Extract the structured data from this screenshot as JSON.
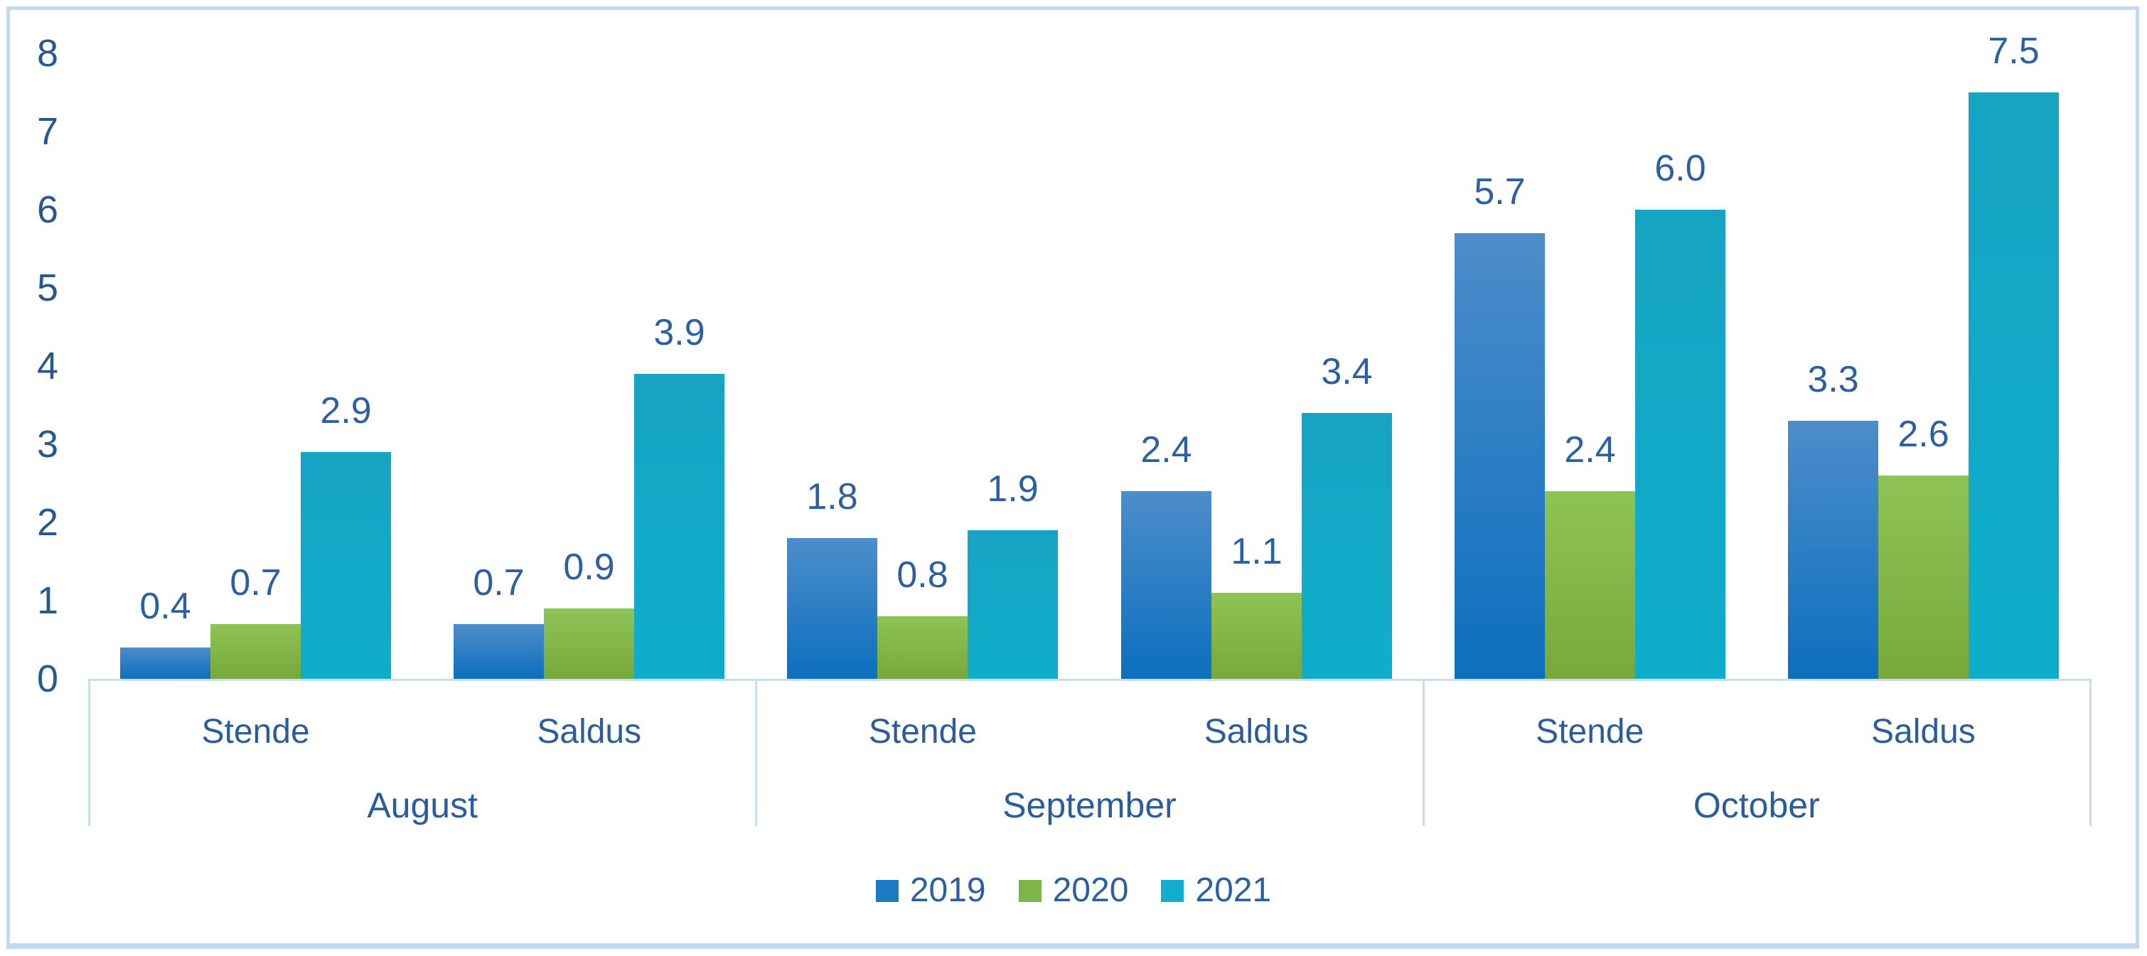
{
  "chart_data": {
    "type": "bar",
    "title": "",
    "y_axis": {
      "min": 0,
      "max": 8,
      "step": 1,
      "ticks": [
        "0",
        "1",
        "2",
        "3",
        "4",
        "5",
        "6",
        "7",
        "8"
      ]
    },
    "groups": [
      {
        "label": "August",
        "subcategories": [
          "Stende",
          "Saldus"
        ]
      },
      {
        "label": "September",
        "subcategories": [
          "Stende",
          "Saldus"
        ]
      },
      {
        "label": "October",
        "subcategories": [
          "Stende",
          "Saldus"
        ]
      }
    ],
    "category_order": [
      "August-Stende",
      "August-Saldus",
      "September-Stende",
      "September-Saldus",
      "October-Stende",
      "October-Saldus"
    ],
    "series": [
      {
        "name": "2019",
        "values": [
          0.4,
          0.7,
          1.8,
          2.4,
          5.7,
          3.3
        ],
        "labels": [
          "0.4",
          "0.7",
          "1.8",
          "2.4",
          "5.7",
          "3.3"
        ],
        "color_top": "#4d8dca",
        "color_bottom": "#0c6fbe",
        "legend_color": "#1b7ac1"
      },
      {
        "name": "2020",
        "values": [
          0.7,
          0.9,
          0.8,
          1.1,
          2.4,
          2.6
        ],
        "labels": [
          "0.7",
          "0.9",
          "0.8",
          "1.1",
          "2.4",
          "2.6"
        ],
        "color_top": "#8ec355",
        "color_bottom": "#77a93a",
        "legend_color": "#7db648"
      },
      {
        "name": "2021",
        "values": [
          2.9,
          3.9,
          1.9,
          3.4,
          6.0,
          7.5
        ],
        "labels": [
          "2.9",
          "3.9",
          "1.9",
          "3.4",
          "6.0",
          "7.5"
        ],
        "color_top": "#17a4c3",
        "color_bottom": "#0eadcc",
        "legend_color": "#10aecd"
      }
    ],
    "legend": {
      "position": "bottom",
      "entries": [
        "2019",
        "2020",
        "2021"
      ]
    },
    "grid": "off",
    "data_labels": "on"
  },
  "colors": {
    "background": "#ffffff",
    "frame_border": "#c2daf0",
    "axis_line": "#c6ddf2",
    "text": "#2b5c9c",
    "tick_text": "#27598f",
    "label_text": "#2d5fa3"
  }
}
